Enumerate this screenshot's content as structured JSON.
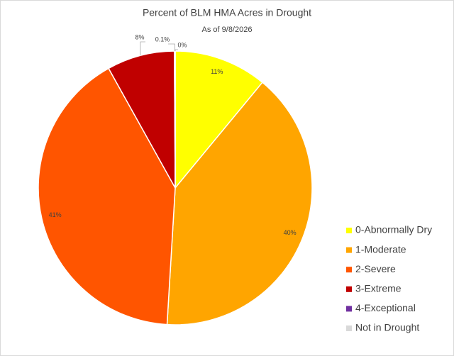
{
  "chart_data": {
    "type": "pie",
    "title": "Percent of BLM HMA Acres in Drought",
    "subtitle": "As of 9/8/2026",
    "categories": [
      "0-Abnormally Dry",
      "1-Moderate",
      "2-Severe",
      "3-Extreme",
      "4-Exceptional",
      "Not in Drought"
    ],
    "values": [
      11,
      40,
      41,
      8,
      0.1,
      0
    ],
    "value_labels": [
      "11%",
      "40%",
      "41%",
      "8%",
      "0.1%",
      "0%"
    ],
    "colors": [
      "#ffff00",
      "#ffa500",
      "#ff5500",
      "#c00000",
      "#7030a0",
      "#d9d9d9"
    ],
    "legend": "right"
  }
}
